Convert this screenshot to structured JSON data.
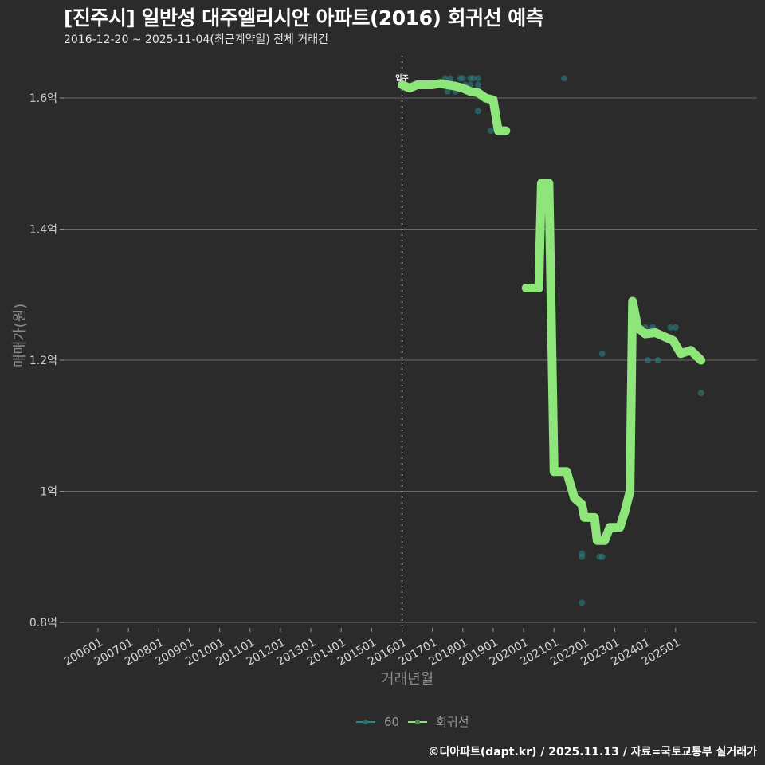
{
  "header": {
    "title": "[진주시] 일반성 대주엘리시안 아파트(2016) 회귀선 예측",
    "subtitle": "2016-12-20 ~ 2025-11-04(최근계약일) 전체 거래건"
  },
  "axes": {
    "ylabel": "매매가(원)",
    "xlabel": "거래년월"
  },
  "legend": {
    "items": [
      {
        "label": "60",
        "color": "#2a8a8a"
      },
      {
        "label": "회귀선",
        "color": "#8ee57a"
      }
    ]
  },
  "annotation": {
    "move_in_label": "입주"
  },
  "footer": {
    "credit": "©디아파트(dapt.kr) / 2025.11.13 / 자료=국토교통부 실거래가"
  },
  "colors": {
    "background": "#2b2b2c",
    "grid": "#6a6a6a",
    "scatter": "#2a7f7f",
    "regression": "#8ee57a"
  },
  "chart_data": {
    "type": "scatter",
    "title": "[진주시] 일반성 대주엘리시안 아파트(2016) 회귀선 예측",
    "subtitle": "2016-12-20 ~ 2025-11-04(최근계약일) 전체 거래건",
    "xlabel": "거래년월",
    "ylabel": "매매가(원)",
    "x_tick_labels": [
      "200601",
      "200701",
      "200801",
      "200901",
      "201001",
      "201101",
      "201201",
      "201301",
      "201401",
      "201501",
      "201601",
      "201701",
      "201801",
      "201901",
      "202001",
      "202101",
      "202201",
      "202301",
      "202401",
      "202501"
    ],
    "y_tick_labels": [
      "0.8억",
      "1억",
      "1.2억",
      "1.4억",
      "1.6억"
    ],
    "y_ticks": [
      0.8,
      1.0,
      1.2,
      1.4,
      1.6
    ],
    "ylim": [
      0.78,
      1.66
    ],
    "xlim": [
      "2005-01",
      "2028-10"
    ],
    "grid": "horizontal major",
    "legend_position": "bottom",
    "vline": {
      "x": "2016-01",
      "label": "입주",
      "style": "dotted"
    },
    "series": [
      {
        "name": "60",
        "type": "scatter",
        "unit": "억",
        "points": [
          {
            "x": "2017-06",
            "y": 1.63
          },
          {
            "x": "2017-07",
            "y": 1.61
          },
          {
            "x": "2017-07",
            "y": 1.62
          },
          {
            "x": "2017-08",
            "y": 1.63
          },
          {
            "x": "2017-09",
            "y": 1.62
          },
          {
            "x": "2017-10",
            "y": 1.61
          },
          {
            "x": "2017-12",
            "y": 1.63
          },
          {
            "x": "2018-01",
            "y": 1.63
          },
          {
            "x": "2018-02",
            "y": 1.62
          },
          {
            "x": "2018-04",
            "y": 1.63
          },
          {
            "x": "2018-04",
            "y": 1.62
          },
          {
            "x": "2018-05",
            "y": 1.63
          },
          {
            "x": "2018-07",
            "y": 1.63
          },
          {
            "x": "2018-07",
            "y": 1.62
          },
          {
            "x": "2018-07",
            "y": 1.58
          },
          {
            "x": "2018-12",
            "y": 1.55
          },
          {
            "x": "2021-05",
            "y": 1.63
          },
          {
            "x": "2021-12",
            "y": 0.905
          },
          {
            "x": "2021-12",
            "y": 0.9
          },
          {
            "x": "2021-12",
            "y": 0.83
          },
          {
            "x": "2022-07",
            "y": 0.9
          },
          {
            "x": "2022-08",
            "y": 1.21
          },
          {
            "x": "2022-08",
            "y": 0.9
          },
          {
            "x": "2023-08",
            "y": 1.29
          },
          {
            "x": "2024-01",
            "y": 1.25
          },
          {
            "x": "2024-02",
            "y": 1.2
          },
          {
            "x": "2024-04",
            "y": 1.25
          },
          {
            "x": "2024-06",
            "y": 1.2
          },
          {
            "x": "2024-11",
            "y": 1.25
          },
          {
            "x": "2025-01",
            "y": 1.25
          },
          {
            "x": "2025-11",
            "y": 1.15
          }
        ]
      },
      {
        "name": "회귀선",
        "type": "line",
        "unit": "억",
        "points": [
          {
            "x": "2016-01",
            "y": 1.62
          },
          {
            "x": "2016-04",
            "y": 1.615
          },
          {
            "x": "2016-07",
            "y": 1.62
          },
          {
            "x": "2017-01",
            "y": 1.62
          },
          {
            "x": "2017-04",
            "y": 1.622
          },
          {
            "x": "2017-10",
            "y": 1.618
          },
          {
            "x": "2018-01",
            "y": 1.615
          },
          {
            "x": "2018-04",
            "y": 1.61
          },
          {
            "x": "2018-07",
            "y": 1.608
          },
          {
            "x": "2018-10",
            "y": 1.6
          },
          {
            "x": "2019-01",
            "y": 1.597
          },
          {
            "x": "2019-03",
            "y": 1.55
          },
          {
            "x": "2019-06",
            "y": 1.55
          },
          {
            "x": "2020-02",
            "y": 1.31
          },
          {
            "x": "2020-07",
            "y": 1.31
          },
          {
            "x": "2020-08",
            "y": 1.47
          },
          {
            "x": "2020-11",
            "y": 1.47
          },
          {
            "x": "2021-01",
            "y": 1.03
          },
          {
            "x": "2021-06",
            "y": 1.03
          },
          {
            "x": "2021-09",
            "y": 0.99
          },
          {
            "x": "2021-12",
            "y": 0.98
          },
          {
            "x": "2022-01",
            "y": 0.96
          },
          {
            "x": "2022-05",
            "y": 0.96
          },
          {
            "x": "2022-06",
            "y": 0.925
          },
          {
            "x": "2022-09",
            "y": 0.925
          },
          {
            "x": "2022-11",
            "y": 0.945
          },
          {
            "x": "2023-03",
            "y": 0.945
          },
          {
            "x": "2023-05",
            "y": 0.97
          },
          {
            "x": "2023-07",
            "y": 1.0
          },
          {
            "x": "2023-08",
            "y": 1.29
          },
          {
            "x": "2023-09",
            "y": 1.27
          },
          {
            "x": "2023-10",
            "y": 1.25
          },
          {
            "x": "2024-01",
            "y": 1.24
          },
          {
            "x": "2024-05",
            "y": 1.242
          },
          {
            "x": "2024-09",
            "y": 1.235
          },
          {
            "x": "2024-12",
            "y": 1.23
          },
          {
            "x": "2025-03",
            "y": 1.21
          },
          {
            "x": "2025-07",
            "y": 1.215
          },
          {
            "x": "2025-11",
            "y": 1.2
          }
        ]
      }
    ]
  }
}
